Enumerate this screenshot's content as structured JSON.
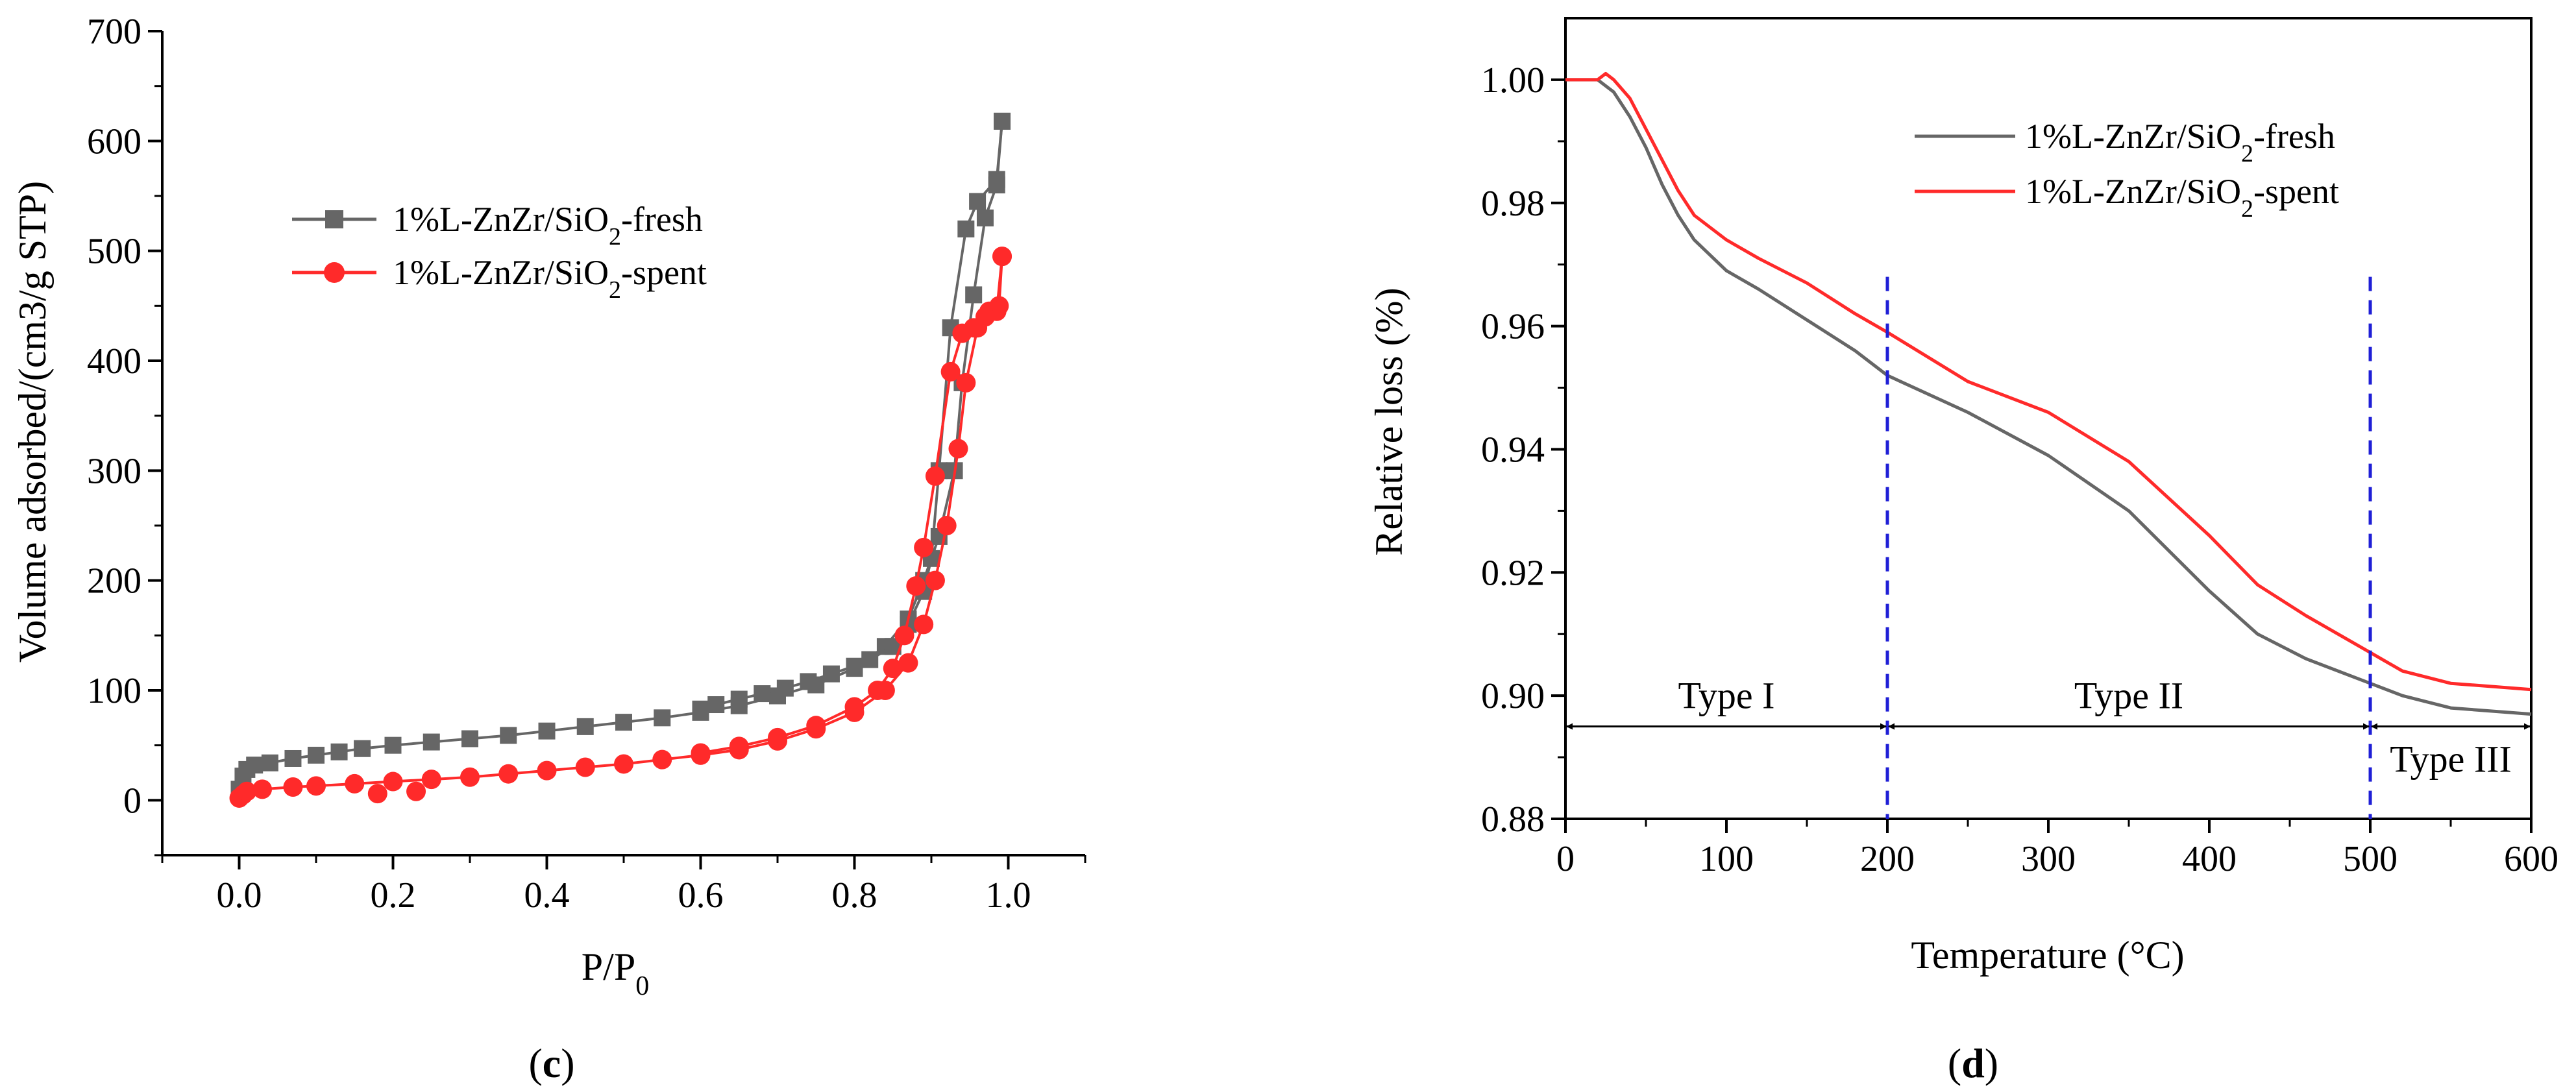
{
  "chart_data": [
    {
      "type": "scatter",
      "panel_label": "c",
      "xlabel": "P/P0",
      "ylabel": "Volume adsorbed/(cm3/g STP)",
      "xlim": [
        -0.1,
        1.1
      ],
      "ylim": [
        -50,
        700
      ],
      "xticks": [
        "0.0",
        "0.2",
        "0.4",
        "0.6",
        "0.8",
        "1.0"
      ],
      "xtick_values": [
        0,
        0.2,
        0.4,
        0.6,
        0.8,
        1.0
      ],
      "yticks": [
        "0",
        "100",
        "200",
        "300",
        "400",
        "500",
        "600",
        "700"
      ],
      "ytick_values": [
        0,
        100,
        200,
        300,
        400,
        500,
        600,
        700
      ],
      "legend_position": "upper-left",
      "series": [
        {
          "name": "1%L-ZnZr/SiO2-fresh",
          "legend_main": "1%L-ZnZr/SiO",
          "legend_sub": "2",
          "legend_tail": "-fresh",
          "color": "#666666",
          "marker": "square",
          "adsorption": [
            [
              0.0,
              10
            ],
            [
              0.005,
              22
            ],
            [
              0.01,
              28
            ],
            [
              0.02,
              32
            ],
            [
              0.04,
              34
            ],
            [
              0.07,
              38
            ],
            [
              0.1,
              41
            ],
            [
              0.13,
              44
            ],
            [
              0.16,
              47
            ],
            [
              0.2,
              50
            ],
            [
              0.25,
              53
            ],
            [
              0.3,
              56
            ],
            [
              0.35,
              59
            ],
            [
              0.4,
              63
            ],
            [
              0.45,
              67
            ],
            [
              0.5,
              71
            ],
            [
              0.55,
              75
            ],
            [
              0.6,
              80
            ],
            [
              0.65,
              86
            ],
            [
              0.7,
              95
            ],
            [
              0.75,
              105
            ],
            [
              0.8,
              120
            ],
            [
              0.84,
              140
            ],
            [
              0.87,
              165
            ],
            [
              0.89,
              200
            ],
            [
              0.91,
              240
            ],
            [
              0.93,
              300
            ],
            [
              0.94,
              380
            ],
            [
              0.955,
              460
            ],
            [
              0.97,
              530
            ],
            [
              0.985,
              560
            ],
            [
              0.992,
              618
            ]
          ],
          "desorption": [
            [
              0.992,
              618
            ],
            [
              0.985,
              565
            ],
            [
              0.96,
              545
            ],
            [
              0.945,
              520
            ],
            [
              0.925,
              430
            ],
            [
              0.91,
              300
            ],
            [
              0.9,
              220
            ],
            [
              0.89,
              190
            ],
            [
              0.87,
              160
            ],
            [
              0.85,
              140
            ],
            [
              0.82,
              128
            ],
            [
              0.8,
              122
            ],
            [
              0.77,
              115
            ],
            [
              0.74,
              108
            ],
            [
              0.71,
              102
            ],
            [
              0.68,
              97
            ],
            [
              0.65,
              92
            ],
            [
              0.62,
              87
            ],
            [
              0.6,
              83
            ]
          ]
        },
        {
          "name": "1%L-ZnZr/SiO2-spent",
          "legend_main": "1%L-ZnZr/SiO",
          "legend_sub": "2",
          "legend_tail": "-spent",
          "color": "#ff2a2a",
          "marker": "circle",
          "adsorption": [
            [
              0.0,
              2
            ],
            [
              0.005,
              5
            ],
            [
              0.01,
              8
            ],
            [
              0.03,
              10
            ],
            [
              0.07,
              12
            ],
            [
              0.1,
              13
            ],
            [
              0.15,
              15
            ],
            [
              0.2,
              17
            ],
            [
              0.25,
              19
            ],
            [
              0.3,
              21
            ],
            [
              0.35,
              24
            ],
            [
              0.4,
              27
            ],
            [
              0.45,
              30
            ],
            [
              0.5,
              33
            ],
            [
              0.55,
              37
            ],
            [
              0.6,
              41
            ],
            [
              0.65,
              46
            ],
            [
              0.7,
              54
            ],
            [
              0.75,
              65
            ],
            [
              0.8,
              80
            ],
            [
              0.84,
              100
            ],
            [
              0.87,
              125
            ],
            [
              0.89,
              160
            ],
            [
              0.905,
              200
            ],
            [
              0.92,
              250
            ],
            [
              0.935,
              320
            ],
            [
              0.945,
              380
            ],
            [
              0.96,
              430
            ],
            [
              0.975,
              445
            ],
            [
              0.988,
              450
            ],
            [
              0.992,
              495
            ]
          ],
          "desorption": [
            [
              0.992,
              495
            ],
            [
              0.985,
              445
            ],
            [
              0.97,
              440
            ],
            [
              0.955,
              430
            ],
            [
              0.94,
              425
            ],
            [
              0.925,
              390
            ],
            [
              0.905,
              295
            ],
            [
              0.89,
              230
            ],
            [
              0.88,
              195
            ],
            [
              0.865,
              150
            ],
            [
              0.85,
              120
            ],
            [
              0.83,
              100
            ],
            [
              0.8,
              85
            ],
            [
              0.75,
              68
            ],
            [
              0.7,
              57
            ],
            [
              0.65,
              49
            ],
            [
              0.6,
              43
            ]
          ],
          "low_outliers": [
            [
              0.18,
              6
            ],
            [
              0.23,
              8
            ]
          ]
        }
      ]
    },
    {
      "type": "line",
      "panel_label": "d",
      "xlabel": "Temperature (°C)",
      "ylabel": "Relative loss (%)",
      "xlim": [
        0,
        600
      ],
      "ylim": [
        0.88,
        1.01
      ],
      "xticks": [
        "0",
        "100",
        "200",
        "300",
        "400",
        "500",
        "600"
      ],
      "xtick_values": [
        0,
        100,
        200,
        300,
        400,
        500,
        600
      ],
      "yticks": [
        "0.88",
        "0.90",
        "0.92",
        "0.94",
        "0.96",
        "0.98",
        "1.00"
      ],
      "ytick_values": [
        0.88,
        0.9,
        0.92,
        0.94,
        0.96,
        0.98,
        1.0
      ],
      "legend_position": "upper-right",
      "series": [
        {
          "name": "1%L-ZnZr/SiO2-fresh",
          "legend_main": "1%L-ZnZr/SiO",
          "legend_sub": "2",
          "legend_tail": "-fresh",
          "color": "#666666",
          "points": [
            [
              0,
              1.0
            ],
            [
              20,
              1.0
            ],
            [
              30,
              0.998
            ],
            [
              40,
              0.994
            ],
            [
              50,
              0.989
            ],
            [
              60,
              0.983
            ],
            [
              70,
              0.978
            ],
            [
              80,
              0.974
            ],
            [
              100,
              0.969
            ],
            [
              120,
              0.966
            ],
            [
              150,
              0.961
            ],
            [
              180,
              0.956
            ],
            [
              200,
              0.952
            ],
            [
              250,
              0.946
            ],
            [
              300,
              0.939
            ],
            [
              350,
              0.93
            ],
            [
              400,
              0.917
            ],
            [
              430,
              0.91
            ],
            [
              460,
              0.906
            ],
            [
              500,
              0.902
            ],
            [
              520,
              0.9
            ],
            [
              550,
              0.898
            ],
            [
              600,
              0.897
            ]
          ]
        },
        {
          "name": "1%L-ZnZr/SiO2-spent",
          "legend_main": "1%L-ZnZr/SiO",
          "legend_sub": "2",
          "legend_tail": "-spent",
          "color": "#ff2a2a",
          "points": [
            [
              0,
              1.0
            ],
            [
              20,
              1.0
            ],
            [
              25,
              1.001
            ],
            [
              30,
              1.0
            ],
            [
              40,
              0.997
            ],
            [
              50,
              0.992
            ],
            [
              60,
              0.987
            ],
            [
              70,
              0.982
            ],
            [
              80,
              0.978
            ],
            [
              100,
              0.974
            ],
            [
              120,
              0.971
            ],
            [
              150,
              0.967
            ],
            [
              180,
              0.962
            ],
            [
              200,
              0.959
            ],
            [
              250,
              0.951
            ],
            [
              300,
              0.946
            ],
            [
              350,
              0.938
            ],
            [
              400,
              0.926
            ],
            [
              430,
              0.918
            ],
            [
              460,
              0.913
            ],
            [
              500,
              0.907
            ],
            [
              520,
              0.904
            ],
            [
              550,
              0.902
            ],
            [
              600,
              0.901
            ]
          ]
        }
      ],
      "vlines": [
        200,
        500
      ],
      "vline_color": "#1f1fd6",
      "arrow_y": 0.895,
      "regions": [
        {
          "label": "Type I",
          "from": 0,
          "to": 200
        },
        {
          "label": "Type II",
          "from": 200,
          "to": 500
        },
        {
          "label": "Type III",
          "from": 500,
          "to": 600
        }
      ]
    }
  ]
}
